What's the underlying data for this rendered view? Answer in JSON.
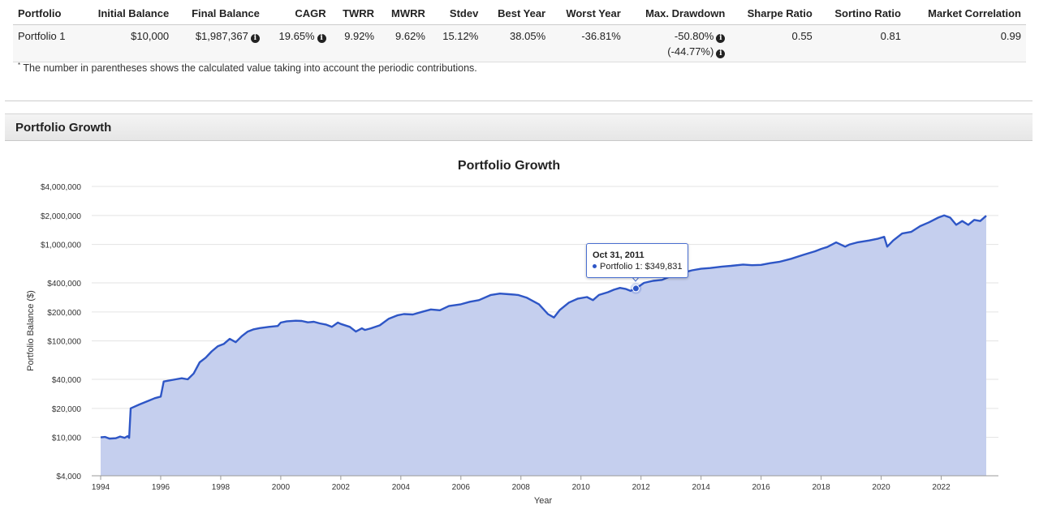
{
  "table": {
    "headers": [
      "Portfolio",
      "Initial Balance",
      "Final Balance",
      "CAGR",
      "TWRR",
      "MWRR",
      "Stdev",
      "Best Year",
      "Worst Year",
      "Max. Drawdown",
      "Sharpe Ratio",
      "Sortino Ratio",
      "Market Correlation"
    ],
    "row": {
      "portfolio": "Portfolio 1",
      "initial_balance": "$10,000",
      "final_balance": "$1,987,367",
      "cagr": "19.65%",
      "twrr": "9.92%",
      "mwrr": "9.62%",
      "stdev": "15.12%",
      "best_year": "38.05%",
      "worst_year": "-36.81%",
      "max_drawdown": "-50.80%",
      "max_drawdown_contrib": "(-44.77%)",
      "sharpe": "0.55",
      "sortino": "0.81",
      "market_correlation": "0.99"
    },
    "info_glyph": "i"
  },
  "footnote": {
    "marker": "*",
    "text": "The number in parentheses shows the calculated value taking into account the periodic contributions."
  },
  "section_title": "Portfolio Growth",
  "tooltip": {
    "date": "Oct 31, 2011",
    "label": "Portfolio 1: $349,831"
  },
  "colors": {
    "line": "#2e56c6",
    "area": "#c5cfee"
  },
  "chart_data": {
    "type": "area",
    "title": "Portfolio Growth",
    "xlabel": "Year",
    "ylabel": "Portfolio Balance ($)",
    "yscale": "log",
    "ylim": [
      4000,
      4000000
    ],
    "xlim": [
      1994,
      2023.5
    ],
    "yticks": [
      4000,
      10000,
      20000,
      40000,
      100000,
      200000,
      400000,
      1000000,
      2000000,
      4000000
    ],
    "ytick_labels": [
      "$4,000",
      "$10,000",
      "$20,000",
      "$40,000",
      "$100,000",
      "$200,000",
      "$400,000",
      "$1,000,000",
      "$2,000,000",
      "$4,000,000"
    ],
    "xticks": [
      1994,
      1996,
      1998,
      2000,
      2002,
      2004,
      2006,
      2008,
      2010,
      2012,
      2014,
      2016,
      2018,
      2020,
      2022
    ],
    "series": [
      {
        "name": "Portfolio 1",
        "x": [
          1994.0,
          1994.15,
          1994.3,
          1994.5,
          1994.65,
          1994.8,
          1994.9,
          1994.95,
          1995.0,
          1995.3,
          1995.6,
          1995.8,
          1996.0,
          1996.1,
          1996.5,
          1996.7,
          1996.9,
          1997.1,
          1997.3,
          1997.5,
          1997.7,
          1997.9,
          1998.1,
          1998.3,
          1998.5,
          1998.7,
          1998.9,
          1999.1,
          1999.3,
          1999.6,
          1999.9,
          2000.0,
          2000.2,
          2000.5,
          2000.7,
          2000.9,
          2001.1,
          2001.3,
          2001.5,
          2001.7,
          2001.9,
          2002.0,
          2002.3,
          2002.5,
          2002.7,
          2002.8,
          2003.0,
          2003.3,
          2003.6,
          2003.9,
          2004.1,
          2004.4,
          2004.7,
          2005.0,
          2005.3,
          2005.6,
          2006.0,
          2006.3,
          2006.6,
          2007.0,
          2007.3,
          2007.6,
          2007.9,
          2008.2,
          2008.6,
          2008.9,
          2009.1,
          2009.3,
          2009.6,
          2009.9,
          2010.2,
          2010.4,
          2010.6,
          2010.9,
          2011.1,
          2011.3,
          2011.5,
          2011.65,
          2011.83,
          2012.1,
          2012.4,
          2012.7,
          2013.0,
          2013.3,
          2013.7,
          2014.0,
          2014.3,
          2014.7,
          2015.0,
          2015.4,
          2015.7,
          2016.0,
          2016.3,
          2016.6,
          2017.0,
          2017.4,
          2017.8,
          2018.0,
          2018.2,
          2018.5,
          2018.8,
          2018.95,
          2019.2,
          2019.6,
          2019.9,
          2020.1,
          2020.2,
          2020.4,
          2020.7,
          2021.0,
          2021.3,
          2021.6,
          2021.9,
          2022.1,
          2022.3,
          2022.5,
          2022.7,
          2022.9,
          2023.1,
          2023.3,
          2023.5
        ],
        "y": [
          10000,
          10100,
          9700,
          9800,
          10200,
          9900,
          10300,
          9900,
          20000,
          22000,
          24000,
          25500,
          26500,
          38000,
          40000,
          41000,
          40000,
          46000,
          60000,
          67000,
          78000,
          88000,
          93000,
          105000,
          97000,
          112000,
          125000,
          132000,
          136000,
          140000,
          143000,
          155000,
          160000,
          162000,
          161000,
          156000,
          158000,
          152000,
          148000,
          140000,
          155000,
          150000,
          140000,
          125000,
          135000,
          130000,
          135000,
          145000,
          170000,
          185000,
          190000,
          188000,
          200000,
          212000,
          208000,
          230000,
          240000,
          255000,
          265000,
          300000,
          310000,
          305000,
          300000,
          280000,
          240000,
          190000,
          175000,
          210000,
          250000,
          275000,
          285000,
          265000,
          300000,
          320000,
          340000,
          355000,
          345000,
          330000,
          349831,
          400000,
          420000,
          430000,
          470000,
          500000,
          540000,
          560000,
          570000,
          590000,
          600000,
          620000,
          610000,
          615000,
          640000,
          660000,
          710000,
          780000,
          850000,
          900000,
          940000,
          1050000,
          950000,
          1000000,
          1050000,
          1100000,
          1150000,
          1200000,
          950000,
          1100000,
          1300000,
          1350000,
          1550000,
          1700000,
          1900000,
          2000000,
          1900000,
          1600000,
          1750000,
          1600000,
          1800000,
          1750000,
          1987367
        ]
      }
    ],
    "highlight": {
      "x": 2011.83,
      "y": 349831
    }
  }
}
